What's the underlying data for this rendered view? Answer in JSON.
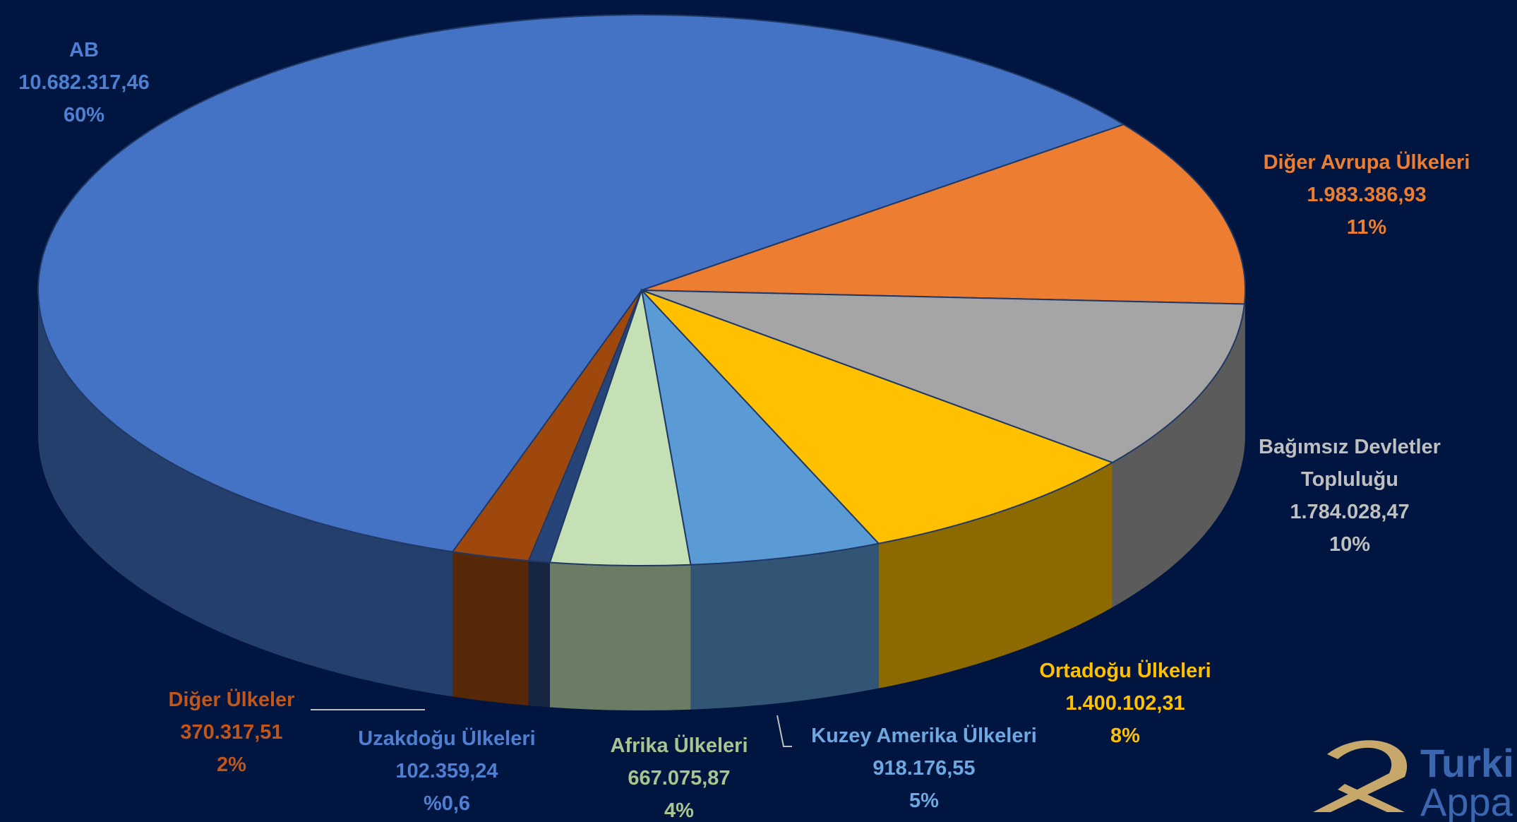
{
  "chart_data": {
    "type": "pie3d",
    "categories": [
      "AB",
      "Diğer Avrupa Ülkeleri",
      "Bağımsız Devletler Topluluğu",
      "Ortadoğu Ülkeleri",
      "Kuzey Amerika Ülkeleri",
      "Afrika Ülkeleri",
      "Uzakdoğu Ülkeleri",
      "Diğer Ülkeler"
    ],
    "values": [
      10682317.46,
      1983386.93,
      1784028.47,
      1400102.31,
      918176.55,
      667075.87,
      102359.24,
      370317.51
    ],
    "value_labels": [
      "10.682.317,46",
      "1.983.386,93",
      "1.784.028,47",
      "1.400.102,31",
      "918.176,55",
      "667.075,87",
      "102.359,24",
      "370.317,51"
    ],
    "percents": [
      60,
      11,
      10,
      8,
      5,
      4,
      0.6,
      2
    ],
    "percent_labels": [
      "60%",
      "11%",
      "10%",
      "8%",
      "5%",
      "4%",
      "%0,6",
      "2%"
    ],
    "colors": [
      "#4472c4",
      "#ed7d31",
      "#a5a5a5",
      "#ffc000",
      "#5b9bd5",
      "#c5e0b4",
      "#264478",
      "#9e480e"
    ],
    "label_colors": [
      "#4f7fd0",
      "#ed7d31",
      "#bfbfbf",
      "#ffc000",
      "#6fa8e0",
      "#a9c490",
      "#4f7fd0",
      "#c0561a"
    ],
    "logo": [
      "Turki",
      "Appa"
    ]
  }
}
